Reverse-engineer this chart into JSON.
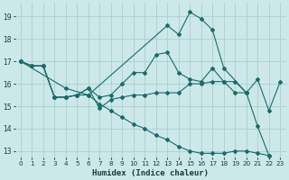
{
  "xlabel": "Humidex (Indice chaleur)",
  "background_color": "#cce8e8",
  "grid_color": "#aacfcf",
  "line_color": "#1a6b6b",
  "xlim": [
    -0.5,
    23.5
  ],
  "ylim": [
    12.7,
    19.6
  ],
  "yticks": [
    13,
    14,
    15,
    16,
    17,
    18,
    19
  ],
  "xticks": [
    0,
    1,
    2,
    3,
    4,
    5,
    6,
    7,
    8,
    9,
    10,
    11,
    12,
    13,
    14,
    15,
    16,
    17,
    18,
    19,
    20,
    21,
    22,
    23
  ],
  "series": [
    {
      "x": [
        0,
        1,
        2,
        3,
        4,
        5,
        6,
        7,
        8,
        9,
        10,
        11,
        12,
        13,
        14,
        15,
        16,
        17,
        18,
        19,
        20,
        21,
        22,
        23
      ],
      "y": [
        17.0,
        16.8,
        16.8,
        15.4,
        15.4,
        15.5,
        15.8,
        15.4,
        15.5,
        16.0,
        16.5,
        16.5,
        17.3,
        17.4,
        16.5,
        16.2,
        16.1,
        16.7,
        16.1,
        16.1,
        15.6,
        16.2,
        14.8,
        16.1
      ]
    },
    {
      "x": [
        0,
        1,
        2,
        3,
        4,
        5,
        6,
        7,
        8,
        9,
        10,
        11,
        12,
        13,
        14,
        15,
        16,
        17,
        18,
        19,
        20,
        21,
        22
      ],
      "y": [
        17.0,
        16.8,
        16.8,
        15.4,
        15.4,
        15.5,
        15.8,
        14.9,
        15.3,
        15.4,
        15.5,
        15.5,
        15.6,
        15.6,
        15.6,
        16.0,
        16.0,
        16.1,
        16.1,
        15.6,
        15.6,
        14.1,
        12.8
      ]
    },
    {
      "x": [
        0,
        1,
        2,
        3,
        4,
        5,
        6,
        7,
        8,
        9,
        10,
        11,
        12,
        13,
        14,
        15,
        16,
        17,
        18,
        19,
        20,
        21,
        22
      ],
      "y": [
        17.0,
        16.8,
        16.8,
        15.4,
        15.4,
        15.5,
        15.5,
        15.1,
        14.8,
        14.5,
        14.2,
        14.0,
        13.7,
        13.5,
        13.2,
        13.0,
        12.9,
        12.9,
        12.9,
        13.0,
        13.0,
        12.9,
        12.8
      ]
    },
    {
      "x": [
        0,
        4,
        6,
        13,
        14,
        15,
        16,
        17,
        18,
        20
      ],
      "y": [
        17.0,
        15.8,
        15.5,
        18.6,
        18.2,
        19.2,
        18.9,
        18.4,
        16.7,
        15.6
      ]
    }
  ]
}
